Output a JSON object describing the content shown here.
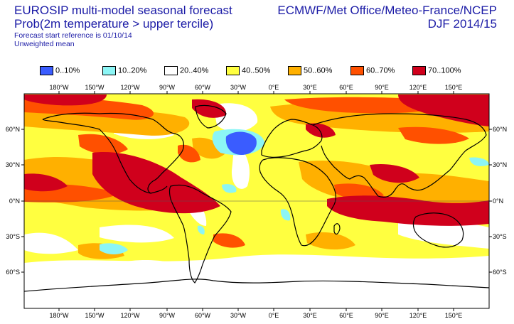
{
  "header": {
    "title_line1": "EUROSIP multi-model seasonal forecast",
    "title_line2": "Prob(2m temperature > upper tercile)",
    "subtitle_line1": "Forecast start reference is 01/10/14",
    "subtitle_line2": "Unweighted mean",
    "centres": "ECMWF/Met Office/Meteo-France/NCEP",
    "season": "DJF 2014/15"
  },
  "legend": [
    {
      "label": "0..10%",
      "color": "#3a5cff"
    },
    {
      "label": "10..20%",
      "color": "#8cf5f5"
    },
    {
      "label": "20..40%",
      "color": "#ffffff"
    },
    {
      "label": "40..50%",
      "color": "#ffff40"
    },
    {
      "label": "50..60%",
      "color": "#ffb000"
    },
    {
      "label": "60..70%",
      "color": "#ff5000"
    },
    {
      "label": "70..100%",
      "color": "#d0001c"
    }
  ],
  "map": {
    "lon_labels": [
      "180°W",
      "150°W",
      "120°W",
      "90°W",
      "60°W",
      "30°W",
      "0°E",
      "30°E",
      "60°E",
      "90°E",
      "120°E",
      "150°E"
    ],
    "lat_labels_left": [
      "60°N",
      "30°N",
      "0°N",
      "30°S",
      "60°S"
    ],
    "lat_labels_right": [
      "60°N",
      "30°N",
      "0°N",
      "30°S",
      "60°S"
    ],
    "background_color": "#ffff40",
    "coast_color": "#000000"
  }
}
